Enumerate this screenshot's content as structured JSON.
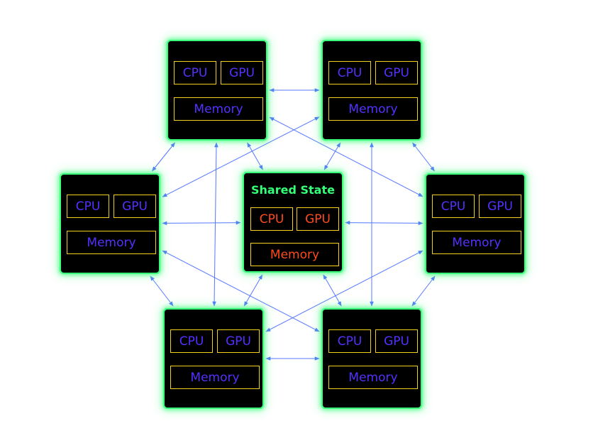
{
  "colors": {
    "node_border": "#39ff7a",
    "node_fill": "#000000",
    "cell_border": "#f2d21a",
    "worker_text": "#5530ff",
    "shared_text": "#ff4a1c",
    "shared_title": "#33ff77",
    "link": "#5577ff"
  },
  "center": {
    "title": "Shared State",
    "cpu": "CPU",
    "gpu": "GPU",
    "memory": "Memory"
  },
  "nodes": [
    {
      "cpu": "CPU",
      "gpu": "GPU",
      "memory": "Memory"
    },
    {
      "cpu": "CPU",
      "gpu": "GPU",
      "memory": "Memory"
    },
    {
      "cpu": "CPU",
      "gpu": "GPU",
      "memory": "Memory"
    },
    {
      "cpu": "CPU",
      "gpu": "GPU",
      "memory": "Memory"
    },
    {
      "cpu": "CPU",
      "gpu": "GPU",
      "memory": "Memory"
    },
    {
      "cpu": "CPU",
      "gpu": "GPU",
      "memory": "Memory"
    }
  ],
  "edges": [
    [
      "top-left",
      "top-right"
    ],
    [
      "top-right",
      "mid-right"
    ],
    [
      "mid-right",
      "bottom-right"
    ],
    [
      "bottom-right",
      "bottom-left"
    ],
    [
      "bottom-left",
      "mid-left"
    ],
    [
      "mid-left",
      "top-left"
    ],
    [
      "top-left",
      "bottom-left"
    ],
    [
      "top-right",
      "bottom-right"
    ],
    [
      "top-right",
      "mid-left"
    ],
    [
      "top-left",
      "mid-right"
    ],
    [
      "mid-left",
      "bottom-right"
    ],
    [
      "mid-right",
      "bottom-left"
    ],
    [
      "center",
      "top-left"
    ],
    [
      "center",
      "top-right"
    ],
    [
      "center",
      "mid-left"
    ],
    [
      "center",
      "mid-right"
    ],
    [
      "center",
      "bottom-left"
    ],
    [
      "center",
      "bottom-right"
    ]
  ]
}
